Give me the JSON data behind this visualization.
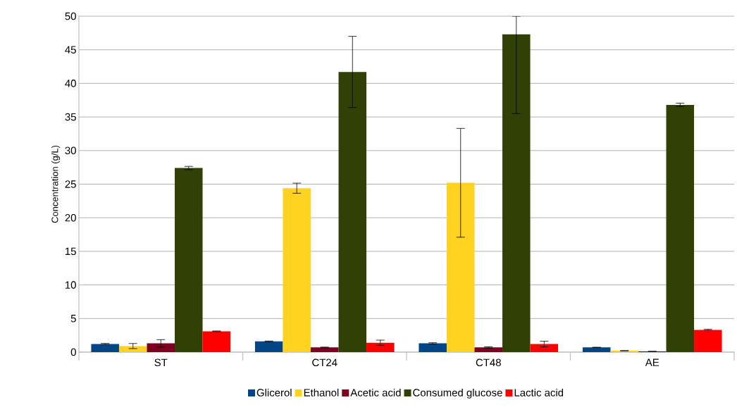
{
  "chart_data": {
    "type": "bar",
    "ylabel": "Concentration (g/L)",
    "categories": [
      "ST",
      "CT24",
      "CT48",
      "AE"
    ],
    "series": [
      {
        "name": "Glicerol",
        "color": "#004586",
        "values": [
          1.2,
          1.6,
          1.3,
          0.7
        ],
        "errors": [
          0.1,
          0.05,
          0.1,
          0.03
        ]
      },
      {
        "name": "Ethanol",
        "color": "#ffd320",
        "values": [
          0.9,
          24.4,
          25.2,
          0.2
        ],
        "errors": [
          0.38,
          0.75,
          8.1,
          0.03
        ]
      },
      {
        "name": "Acetic acid",
        "color": "#7e0021",
        "values": [
          1.3,
          0.7,
          0.7,
          0.1
        ],
        "errors": [
          0.55,
          0.05,
          0.1,
          0.02
        ]
      },
      {
        "name": "Consumed glucose",
        "color": "#314004",
        "values": [
          27.4,
          41.7,
          47.3,
          36.8
        ],
        "errors": [
          0.25,
          5.3,
          [
            35.5,
            50
          ],
          0.25
        ]
      },
      {
        "name": "Lactic acid",
        "color": "#ff0000",
        "values": [
          3.1,
          1.4,
          1.2,
          3.3
        ],
        "errors": [
          0.05,
          0.38,
          0.42,
          0.1
        ]
      }
    ],
    "ylim": [
      0,
      50
    ],
    "yticks": [
      0,
      5,
      10,
      15,
      20,
      25,
      30,
      35,
      40,
      45,
      50
    ],
    "grid": "y",
    "legend": "bottom"
  }
}
